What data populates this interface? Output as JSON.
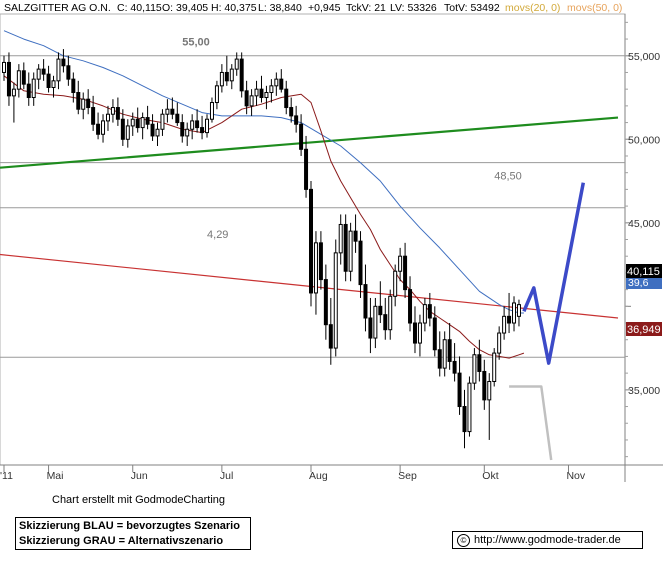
{
  "header": {
    "name": "SALZGITTER AG O.N.",
    "close": "C: 40,115",
    "open": "O: 39,405",
    "high": "H: 40,375",
    "low": "L: 38,840",
    "change": "+0,945",
    "tickvolume": "TckV: 21",
    "lastvolume": "LV: 53326",
    "totalvolume": "TotV: 53492",
    "ma1": "movs(20, 0)",
    "ma2": "movs(50, 0)"
  },
  "footer": {
    "credit": "Chart erstellt mit GodmodeCharting",
    "legend_blue": "Skizzierung BLAU = bevorzugtes Szenario",
    "legend_gray": "Skizzierung GRAU = Alternativszenario",
    "url": "http://www.godmode-trader.de"
  },
  "price_tags": {
    "last": "40,115",
    "ma": "36,949",
    "hidden": "39,6"
  },
  "colors": {
    "candle": "#000000",
    "ma20": "#8b1a1a",
    "ma50": "#3f6fc0",
    "trend_green": "#1e8c1e",
    "trend_red": "#c83232",
    "scenario_blue": "#3c4ac8",
    "scenario_gray": "#c0c0c0",
    "last_tag": "#000000",
    "ma_tag": "#8b1a1a"
  },
  "chart_data": {
    "type": "candlestick",
    "ylim": [
      30.5,
      57.5
    ],
    "xlim": [
      0,
      124
    ],
    "grid": "horizontal",
    "y_ticks": [
      {
        "v": 55,
        "label": "55,000"
      },
      {
        "v": 50,
        "label": "50,000"
      },
      {
        "v": 45,
        "label": "45,000"
      },
      {
        "v": 40,
        "label": ""
      },
      {
        "v": 35,
        "label": "35,000"
      }
    ],
    "extra_gridlines": [
      48.6,
      45.9,
      36.95
    ],
    "x_ticks": [
      {
        "x": 0,
        "label": "'11"
      },
      {
        "x": 9,
        "label": "Mai"
      },
      {
        "x": 26,
        "label": "Jun"
      },
      {
        "x": 44,
        "label": "Jul"
      },
      {
        "x": 62,
        "label": "Aug"
      },
      {
        "x": 80,
        "label": "Sep"
      },
      {
        "x": 97,
        "label": "Okt"
      },
      {
        "x": 114,
        "label": "Nov"
      }
    ],
    "annotations": [
      {
        "x": 36,
        "y": 55.6,
        "text": "55,00",
        "bold": true
      },
      {
        "x": 99,
        "y": 47.6,
        "text": "48,50",
        "bold": false
      },
      {
        "x": 41,
        "y": 44.1,
        "text": "4,29",
        "bold": false
      }
    ],
    "trendlines": [
      {
        "name": "green",
        "x1": 0,
        "y1": 48.3,
        "x2": 124,
        "y2": 51.3
      },
      {
        "name": "red",
        "x1": 0,
        "y1": 43.1,
        "x2": 124,
        "y2": 39.3
      }
    ],
    "scenario_blue": [
      [
        105,
        39.7
      ],
      [
        107,
        41.1
      ],
      [
        110,
        36.6
      ],
      [
        117,
        47.4
      ]
    ],
    "scenario_gray": [
      [
        102,
        35.2
      ],
      [
        108.5,
        35.2
      ],
      [
        110.5,
        30.8
      ]
    ],
    "ma20": [
      [
        0,
        53.8
      ],
      [
        4,
        52.9
      ],
      [
        8,
        52.7
      ],
      [
        12,
        52.6
      ],
      [
        16,
        52.4
      ],
      [
        20,
        52.0
      ],
      [
        24,
        51.5
      ],
      [
        28,
        51.2
      ],
      [
        32,
        51.0
      ],
      [
        36,
        50.6
      ],
      [
        40,
        50.4
      ],
      [
        44,
        51.0
      ],
      [
        48,
        51.8
      ],
      [
        52,
        52.1
      ],
      [
        56,
        52.5
      ],
      [
        60,
        52.7
      ],
      [
        62,
        52.2
      ],
      [
        64,
        50.5
      ],
      [
        66,
        48.7
      ],
      [
        68,
        47.5
      ],
      [
        70,
        46.5
      ],
      [
        72,
        45.5
      ],
      [
        74,
        44.6
      ],
      [
        76,
        43.4
      ],
      [
        78,
        42.5
      ],
      [
        80,
        41.6
      ],
      [
        82,
        41.0
      ],
      [
        84,
        40.3
      ],
      [
        86,
        39.7
      ],
      [
        88,
        39.3
      ],
      [
        90,
        38.9
      ],
      [
        92,
        38.5
      ],
      [
        94,
        37.9
      ],
      [
        96,
        37.4
      ],
      [
        98,
        37.1
      ],
      [
        100,
        37.0
      ],
      [
        102,
        36.9
      ],
      [
        104,
        37.1
      ],
      [
        105,
        37.2
      ]
    ],
    "ma50": [
      [
        0,
        56.5
      ],
      [
        4,
        56.0
      ],
      [
        8,
        55.6
      ],
      [
        12,
        55.0
      ],
      [
        16,
        54.7
      ],
      [
        20,
        54.3
      ],
      [
        24,
        53.8
      ],
      [
        28,
        53.2
      ],
      [
        32,
        52.6
      ],
      [
        36,
        52.1
      ],
      [
        40,
        51.6
      ],
      [
        44,
        51.4
      ],
      [
        48,
        51.4
      ],
      [
        52,
        51.4
      ],
      [
        56,
        51.3
      ],
      [
        60,
        51.0
      ],
      [
        64,
        50.3
      ],
      [
        68,
        49.6
      ],
      [
        72,
        48.6
      ],
      [
        76,
        47.5
      ],
      [
        80,
        46.0
      ],
      [
        84,
        44.7
      ],
      [
        88,
        43.5
      ],
      [
        92,
        42.2
      ],
      [
        96,
        40.9
      ],
      [
        100,
        40.1
      ],
      [
        102,
        39.8
      ],
      [
        104,
        39.6
      ],
      [
        105,
        39.6
      ]
    ],
    "candles": [
      [
        0,
        54.0,
        55.0,
        53.5,
        54.6
      ],
      [
        1,
        54.6,
        55.2,
        52.0,
        52.6
      ],
      [
        2,
        52.6,
        53.4,
        51.0,
        53.0
      ],
      [
        3,
        53.0,
        54.5,
        52.5,
        54.1
      ],
      [
        4,
        54.1,
        54.6,
        53.0,
        53.3
      ],
      [
        5,
        53.3,
        54.0,
        52.0,
        52.5
      ],
      [
        6,
        52.5,
        54.0,
        52.0,
        53.6
      ],
      [
        7,
        53.6,
        54.5,
        53.0,
        54.2
      ],
      [
        8,
        54.2,
        54.8,
        53.5,
        53.9
      ],
      [
        9,
        53.9,
        54.4,
        52.8,
        53.1
      ],
      [
        10,
        53.1,
        53.8,
        52.5,
        53.5
      ],
      [
        11,
        53.5,
        55.2,
        53.0,
        54.8
      ],
      [
        12,
        54.8,
        55.4,
        54.0,
        54.4
      ],
      [
        13,
        54.4,
        55.0,
        53.2,
        53.6
      ],
      [
        14,
        53.6,
        54.0,
        52.2,
        52.8
      ],
      [
        15,
        52.8,
        53.5,
        51.5,
        51.8
      ],
      [
        16,
        51.8,
        52.8,
        51.2,
        52.4
      ],
      [
        17,
        52.4,
        53.0,
        51.5,
        51.9
      ],
      [
        18,
        51.9,
        52.6,
        50.5,
        50.9
      ],
      [
        19,
        50.9,
        51.6,
        50.0,
        50.3
      ],
      [
        20,
        50.3,
        51.5,
        49.8,
        51.1
      ],
      [
        21,
        51.1,
        52.0,
        50.5,
        51.5
      ],
      [
        22,
        51.5,
        52.4,
        51.0,
        51.9
      ],
      [
        23,
        51.9,
        52.5,
        50.8,
        51.2
      ],
      [
        24,
        51.2,
        51.8,
        49.6,
        50.0
      ],
      [
        25,
        50.0,
        51.2,
        49.5,
        50.8
      ],
      [
        26,
        50.8,
        51.6,
        50.2,
        51.2
      ],
      [
        27,
        51.2,
        51.9,
        50.4,
        50.7
      ],
      [
        28,
        50.7,
        51.6,
        50.0,
        51.3
      ],
      [
        29,
        51.3,
        52.0,
        50.6,
        50.9
      ],
      [
        30,
        50.9,
        51.5,
        49.9,
        50.2
      ],
      [
        31,
        50.2,
        51.0,
        49.6,
        50.6
      ],
      [
        32,
        50.6,
        51.8,
        50.2,
        51.5
      ],
      [
        33,
        51.5,
        52.4,
        51.0,
        51.8
      ],
      [
        34,
        51.8,
        52.5,
        51.2,
        51.5
      ],
      [
        35,
        51.5,
        52.2,
        50.8,
        51.0
      ],
      [
        36,
        51.0,
        51.5,
        49.8,
        50.2
      ],
      [
        37,
        50.2,
        51.0,
        49.6,
        50.6
      ],
      [
        38,
        50.6,
        51.5,
        50.0,
        51.1
      ],
      [
        39,
        51.1,
        51.8,
        50.4,
        50.7
      ],
      [
        40,
        50.7,
        51.4,
        50.0,
        50.4
      ],
      [
        41,
        50.4,
        51.5,
        50.1,
        51.2
      ],
      [
        42,
        51.2,
        52.5,
        51.0,
        52.2
      ],
      [
        43,
        52.2,
        53.5,
        51.8,
        53.2
      ],
      [
        44,
        53.2,
        54.5,
        52.8,
        54.0
      ],
      [
        45,
        54.0,
        55.0,
        53.2,
        53.5
      ],
      [
        46,
        53.5,
        54.5,
        53.0,
        54.2
      ],
      [
        47,
        54.2,
        55.2,
        53.8,
        54.8
      ],
      [
        48,
        54.8,
        55.2,
        52.5,
        52.9
      ],
      [
        49,
        52.9,
        53.5,
        51.5,
        52.0
      ],
      [
        50,
        52.0,
        53.0,
        51.4,
        52.6
      ],
      [
        51,
        52.6,
        53.5,
        52.0,
        53.0
      ],
      [
        52,
        53.0,
        53.8,
        52.2,
        52.5
      ],
      [
        53,
        52.5,
        53.2,
        51.8,
        52.8
      ],
      [
        54,
        52.8,
        53.6,
        52.2,
        53.2
      ],
      [
        55,
        53.2,
        54.0,
        52.6,
        53.6
      ],
      [
        56,
        53.6,
        54.2,
        52.8,
        53.0
      ],
      [
        57,
        53.0,
        53.5,
        51.5,
        51.9
      ],
      [
        58,
        51.9,
        52.5,
        51.0,
        51.4
      ],
      [
        59,
        51.4,
        52.0,
        50.4,
        50.9
      ],
      [
        60,
        50.9,
        51.5,
        49.0,
        49.4
      ],
      [
        61,
        49.4,
        50.2,
        46.5,
        47.0
      ],
      [
        62,
        47.0,
        47.5,
        40.0,
        40.8
      ],
      [
        63,
        40.8,
        44.5,
        39.5,
        43.8
      ],
      [
        64,
        43.8,
        44.5,
        41.0,
        41.6
      ],
      [
        65,
        41.6,
        42.5,
        38.0,
        38.9
      ],
      [
        66,
        38.9,
        40.5,
        36.5,
        37.5
      ],
      [
        67,
        37.5,
        44.0,
        37.0,
        43.2
      ],
      [
        68,
        43.2,
        45.5,
        42.5,
        44.9
      ],
      [
        69,
        44.9,
        45.5,
        41.5,
        42.1
      ],
      [
        70,
        42.1,
        45.0,
        41.5,
        44.5
      ],
      [
        71,
        44.5,
        45.5,
        43.2,
        43.9
      ],
      [
        72,
        43.9,
        44.5,
        40.5,
        41.3
      ],
      [
        73,
        41.3,
        42.5,
        38.5,
        39.3
      ],
      [
        74,
        39.3,
        40.5,
        37.2,
        38.1
      ],
      [
        75,
        38.1,
        40.5,
        37.5,
        40.0
      ],
      [
        76,
        40.0,
        41.5,
        39.0,
        39.5
      ],
      [
        77,
        39.5,
        40.5,
        38.0,
        38.6
      ],
      [
        78,
        38.6,
        41.0,
        38.0,
        40.6
      ],
      [
        79,
        40.6,
        42.5,
        40.0,
        42.1
      ],
      [
        80,
        42.1,
        43.5,
        41.5,
        43.0
      ],
      [
        81,
        43.0,
        43.8,
        40.5,
        41.0
      ],
      [
        82,
        41.0,
        41.8,
        38.5,
        39.0
      ],
      [
        83,
        39.0,
        40.0,
        37.2,
        37.8
      ],
      [
        84,
        37.8,
        39.5,
        37.0,
        39.0
      ],
      [
        85,
        39.0,
        40.5,
        38.5,
        40.1
      ],
      [
        86,
        40.1,
        40.8,
        38.8,
        39.3
      ],
      [
        87,
        39.3,
        40.0,
        37.0,
        37.4
      ],
      [
        88,
        37.4,
        38.5,
        35.8,
        36.3
      ],
      [
        89,
        36.3,
        38.5,
        35.8,
        38.0
      ],
      [
        90,
        38.0,
        39.0,
        36.2,
        36.7
      ],
      [
        91,
        36.7,
        37.8,
        35.5,
        36.0
      ],
      [
        92,
        36.0,
        37.0,
        33.5,
        34.0
      ],
      [
        93,
        34.0,
        35.0,
        31.5,
        32.5
      ],
      [
        94,
        32.5,
        35.8,
        32.2,
        35.4
      ],
      [
        95,
        35.4,
        37.5,
        35.0,
        37.1
      ],
      [
        96,
        37.1,
        38.0,
        35.5,
        36.1
      ],
      [
        97,
        36.1,
        36.8,
        33.8,
        34.4
      ],
      [
        98,
        34.4,
        36.0,
        32.0,
        35.5
      ],
      [
        99,
        35.5,
        37.5,
        35.2,
        37.2
      ],
      [
        100,
        37.2,
        38.8,
        36.8,
        38.4
      ],
      [
        101,
        38.4,
        40.0,
        38.0,
        39.4
      ],
      [
        102,
        39.4,
        40.8,
        38.4,
        39.0
      ],
      [
        103,
        39.0,
        40.6,
        38.5,
        40.2
      ],
      [
        104,
        39.4,
        40.4,
        38.8,
        40.1
      ]
    ]
  }
}
